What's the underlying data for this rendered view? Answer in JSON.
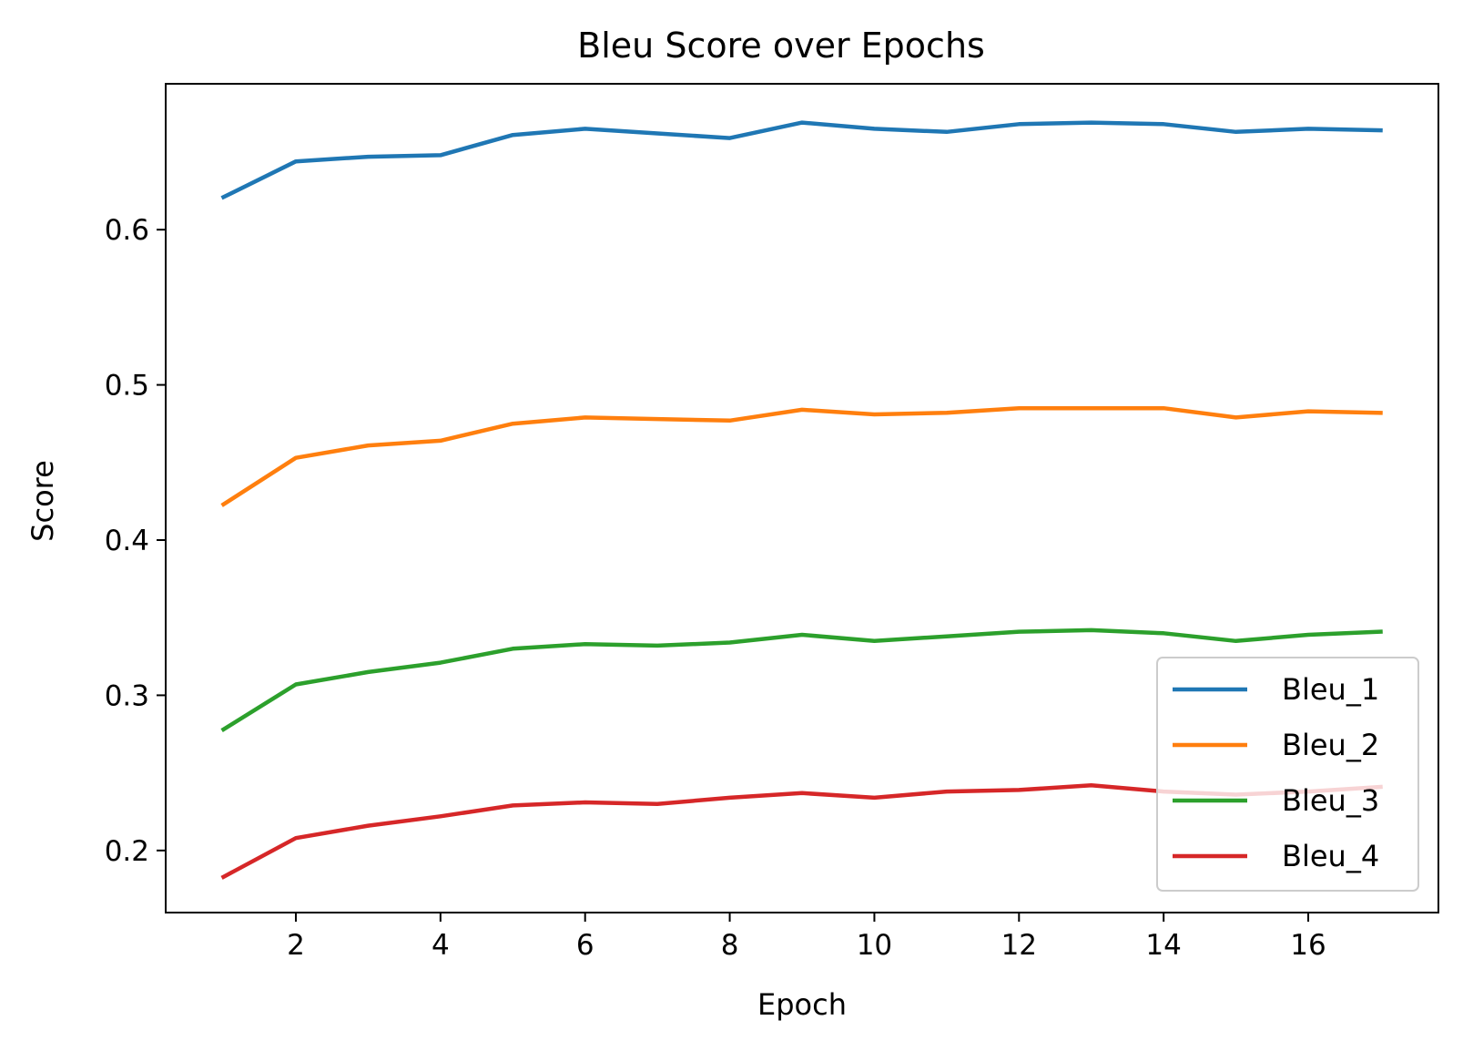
{
  "chart_data": {
    "type": "line",
    "title": "Bleu Score over Epochs",
    "xlabel": "Epoch",
    "ylabel": "Score",
    "xlim": [
      0.2,
      17.8
    ],
    "ylim": [
      0.16,
      0.694
    ],
    "xticks": [
      2,
      4,
      6,
      8,
      10,
      12,
      14,
      16
    ],
    "yticks": [
      0.2,
      0.3,
      0.4,
      0.5,
      0.6
    ],
    "ytick_labels": [
      "0.2",
      "0.3",
      "0.4",
      "0.5",
      "0.6"
    ],
    "grid": false,
    "legend_position": "lower-right",
    "x": [
      1,
      2,
      3,
      4,
      5,
      6,
      7,
      8,
      9,
      10,
      11,
      12,
      13,
      14,
      15,
      16,
      17
    ],
    "series": [
      {
        "name": "Bleu_1",
        "color": "#1f77b4",
        "values": [
          0.621,
          0.644,
          0.647,
          0.648,
          0.661,
          0.665,
          0.662,
          0.659,
          0.669,
          0.665,
          0.663,
          0.668,
          0.669,
          0.668,
          0.663,
          0.665,
          0.664
        ]
      },
      {
        "name": "Bleu_2",
        "color": "#ff7f0e",
        "values": [
          0.423,
          0.453,
          0.461,
          0.464,
          0.475,
          0.479,
          0.478,
          0.477,
          0.484,
          0.481,
          0.482,
          0.485,
          0.485,
          0.485,
          0.479,
          0.483,
          0.482
        ]
      },
      {
        "name": "Bleu_3",
        "color": "#2ca02c",
        "values": [
          0.278,
          0.307,
          0.315,
          0.321,
          0.33,
          0.333,
          0.332,
          0.334,
          0.339,
          0.335,
          0.338,
          0.341,
          0.342,
          0.34,
          0.335,
          0.339,
          0.341
        ]
      },
      {
        "name": "Bleu_4",
        "color": "#d62728",
        "values": [
          0.183,
          0.208,
          0.216,
          0.222,
          0.229,
          0.231,
          0.23,
          0.234,
          0.237,
          0.234,
          0.238,
          0.239,
          0.242,
          0.238,
          0.236,
          0.238,
          0.241
        ]
      }
    ]
  }
}
